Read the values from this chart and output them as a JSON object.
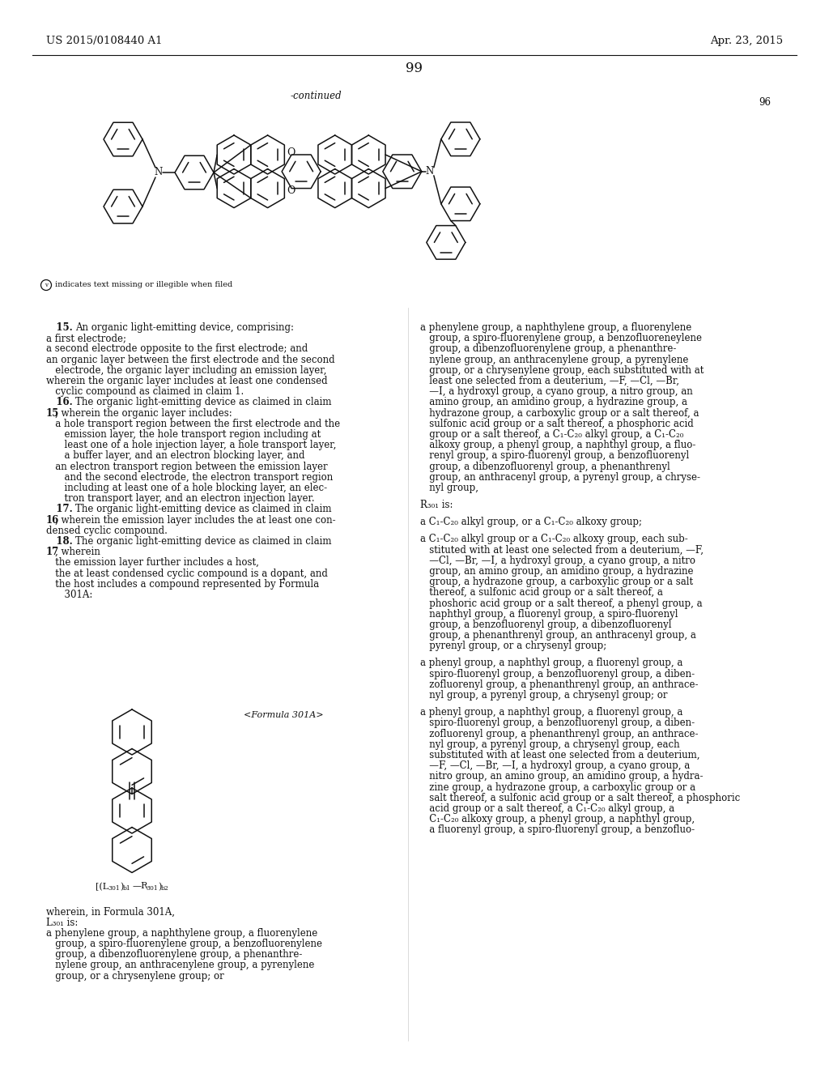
{
  "header_left": "US 2015/0108440 A1",
  "header_right": "Apr. 23, 2015",
  "page_num": "99",
  "continued_label": "-continued",
  "formula_num_right": "96",
  "bg": "#ffffff",
  "tc": "#111111",
  "col1_lines": [
    [
      "bold",
      "   15. ",
      "An organic light-emitting device, comprising:"
    ],
    [
      "normal",
      "a first electrode;"
    ],
    [
      "normal",
      "a second electrode opposite to the first electrode; and"
    ],
    [
      "normal",
      "an organic layer between the first electrode and the second"
    ],
    [
      "normal",
      "   electrode, the organic layer including an emission layer,"
    ],
    [
      "normal",
      "wherein the organic layer includes at least one condensed"
    ],
    [
      "normal",
      "   cyclic compound as claimed in claim 1."
    ],
    [
      "bold",
      "   16. ",
      "The organic light-emitting device as claimed in claim"
    ],
    [
      "bold_cont",
      "15",
      ", wherein the organic layer includes:"
    ],
    [
      "normal",
      "   a hole transport region between the first electrode and the"
    ],
    [
      "normal",
      "      emission layer, the hole transport region including at"
    ],
    [
      "normal",
      "      least one of a hole injection layer, a hole transport layer,"
    ],
    [
      "normal",
      "      a buffer layer, and an electron blocking layer, and"
    ],
    [
      "normal",
      "   an electron transport region between the emission layer"
    ],
    [
      "normal",
      "      and the second electrode, the electron transport region"
    ],
    [
      "normal",
      "      including at least one of a hole blocking layer, an elec-"
    ],
    [
      "normal",
      "      tron transport layer, and an electron injection layer."
    ],
    [
      "bold",
      "   17. ",
      "The organic light-emitting device as claimed in claim"
    ],
    [
      "bold_cont",
      "16",
      ", wherein the emission layer includes the at least one con-"
    ],
    [
      "normal",
      "densed cyclic compound."
    ],
    [
      "bold",
      "   18. ",
      "The organic light-emitting device as claimed in claim"
    ],
    [
      "bold_cont",
      "17",
      ", wherein"
    ],
    [
      "normal",
      "   the emission layer further includes a host,"
    ],
    [
      "normal",
      "   the at least condensed cyclic compound is a dopant, and"
    ],
    [
      "normal",
      "   the host includes a compound represented by Formula"
    ],
    [
      "normal",
      "      301A:"
    ]
  ],
  "col1_after_lines": [
    [
      "normal",
      "wherein, in Formula 301A,"
    ],
    [
      "normal",
      "L₃₀₁ is:"
    ],
    [
      "normal",
      "a phenylene group, a naphthylene group, a fluorenylene"
    ],
    [
      "normal",
      "   group, a spiro-fluorenylene group, a benzofluorenylene"
    ],
    [
      "normal",
      "   group, a dibenzofluorenylene group, a phenanthre-"
    ],
    [
      "normal",
      "   nylene group, an anthracenylene group, a pyrenylene"
    ],
    [
      "normal",
      "   group, or a chrysenylene group; or"
    ]
  ],
  "col2_lines": [
    "a phenylene group, a naphthylene group, a fluorenylene",
    "   group, a spiro-fluorenylene group, a benzofluoreneylene",
    "   group, a dibenzofluorenylene group, a phenanthre-",
    "   nylene group, an anthracenylene group, a pyrenylene",
    "   group, or a chrysenylene group, each substituted with at",
    "   least one selected from a deuterium, —F, —Cl, —Br,",
    "   —I, a hydroxyl group, a cyano group, a nitro group, an",
    "   amino group, an amidino group, a hydrazine group, a",
    "   hydrazone group, a carboxylic group or a salt thereof, a",
    "   sulfonic acid group or a salt thereof, a phosphoric acid",
    "   group or a salt thereof, a C₁-C₂₀ alkyl group, a C₁-C₂₀",
    "   alkoxy group, a phenyl group, a naphthyl group, a fluo-",
    "   renyl group, a spiro-fluorenyl group, a benzofluorenyl",
    "   group, a dibenzofluorenyl group, a phenanthrenyl",
    "   group, an anthracenyl group, a pyrenyl group, a chryse-",
    "   nyl group,",
    "",
    "R₃₀₁ is:",
    "",
    "a C₁-C₂₀ alkyl group, or a C₁-C₂₀ alkoxy group;",
    "",
    "a C₁-C₂₀ alkyl group or a C₁-C₂₀ alkoxy group, each sub-",
    "   stituted with at least one selected from a deuterium, —F,",
    "   —Cl, —Br, —I, a hydroxyl group, a cyano group, a nitro",
    "   group, an amino group, an amidino group, a hydrazine",
    "   group, a hydrazone group, a carboxylic group or a salt",
    "   thereof, a sulfonic acid group or a salt thereof, a",
    "   phoshoric acid group or a salt thereof, a phenyl group, a",
    "   naphthyl group, a fluorenyl group, a spiro-fluorenyl",
    "   group, a benzofluorenyl group, a dibenzofluorenyl",
    "   group, a phenanthrenyl group, an anthracenyl group, a",
    "   pyrenyl group, or a chrysenyl group;",
    "",
    "a phenyl group, a naphthyl group, a fluorenyl group, a",
    "   spiro-fluorenyl group, a benzofluorenyl group, a diben-",
    "   zofluorenyl group, a phenanthrenyl group, an anthrace-",
    "   nyl group, a pyrenyl group, a chrysenyl group; or",
    "",
    "a phenyl group, a naphthyl group, a fluorenyl group, a",
    "   spiro-fluorenyl group, a benzofluorenyl group, a diben-",
    "   zofluorenyl group, a phenanthrenyl group, an anthrace-",
    "   nyl group, a pyrenyl group, a chrysenyl group, each",
    "   substituted with at least one selected from a deuterium,",
    "   —F, —Cl, —Br, —I, a hydroxyl group, a cyano group, a",
    "   nitro group, an amino group, an amidino group, a hydra-",
    "   zine group, a hydrazone group, a carboxylic group or a",
    "   salt thereof, a sulfonic acid group or a salt thereof, a phosphoric",
    "   acid group or a salt thereof, a C₁-C₂₀ alkyl group, a",
    "   C₁-C₂₀ alkoxy group, a phenyl group, a naphthyl group,",
    "   a fluorenyl group, a spiro-fluorenyl group, a benzofluo-"
  ]
}
